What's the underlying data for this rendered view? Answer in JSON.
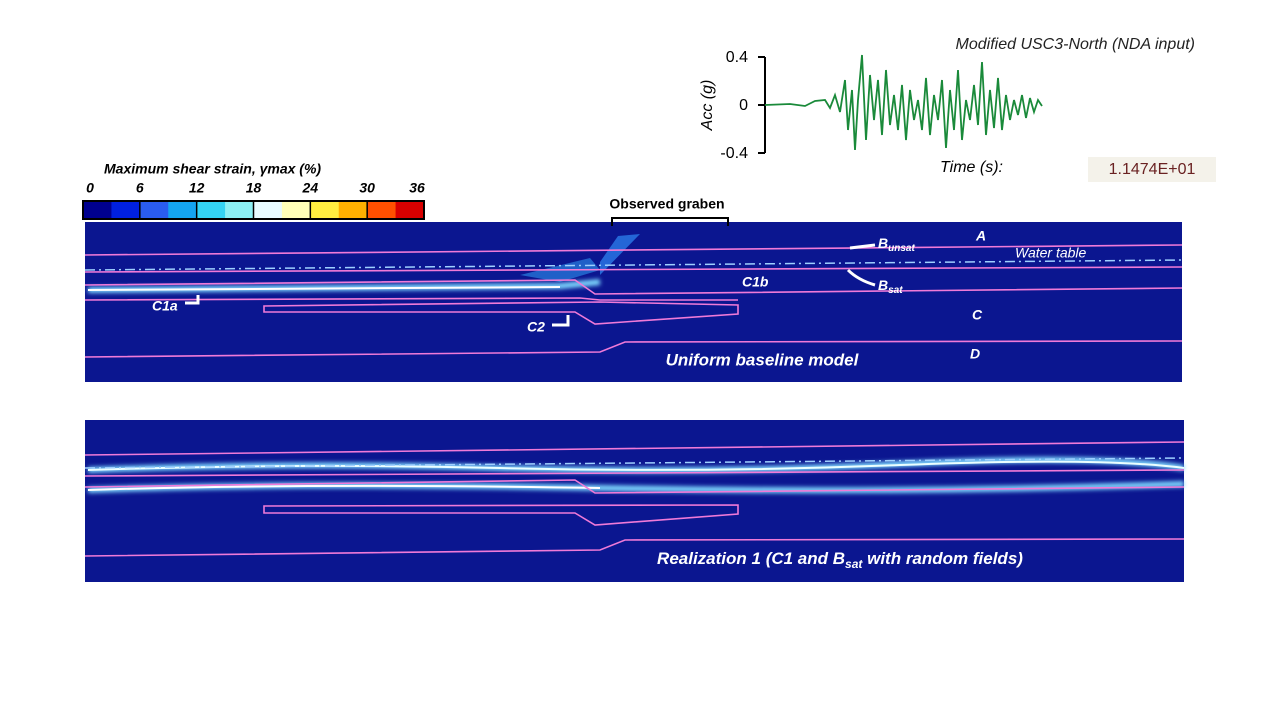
{
  "motion": {
    "title": "Modified USC3-North (NDA input)",
    "y_label": "Acc (g)",
    "y_ticks": [
      "0.4",
      "0",
      "-0.4"
    ],
    "time_label": "Time (s):",
    "time_value": "1.1474E+01"
  },
  "colorbar": {
    "title": "Maximum shear strain, γmax (%)",
    "ticks": [
      "0",
      "6",
      "12",
      "18",
      "24",
      "30",
      "36"
    ],
    "colors": [
      "#00008f",
      "#0020e0",
      "#2a5cf0",
      "#14a4f0",
      "#34d4f4",
      "#8cf0f4",
      "#e8fbff",
      "#ffffb8",
      "#ffee40",
      "#ffb000",
      "#ff5000",
      "#d80000"
    ]
  },
  "top_panel": {
    "graben": "Observed graben",
    "layer_a": "A",
    "b_unsat": {
      "main": "B",
      "sub": "unsat"
    },
    "water_table": "Water table",
    "b_sat": {
      "main": "B",
      "sub": "sat"
    },
    "c1b": "C1b",
    "c1a": "C1a",
    "c2": "C2",
    "layer_c": "C",
    "layer_d": "D",
    "caption": "Uniform baseline model"
  },
  "bottom_panel": {
    "caption": {
      "before": "Realization 1 (C1 and B",
      "sub": "sat",
      "after": " with random fields)"
    }
  }
}
